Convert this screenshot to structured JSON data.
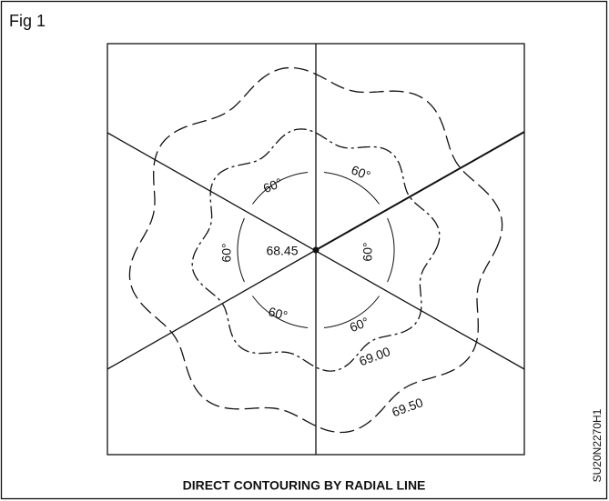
{
  "figure_label": "Fig 1",
  "center_label": "68.45",
  "angle_labels": [
    "60°",
    "60°",
    "60°",
    "60°",
    "60°",
    "60°"
  ],
  "contour_labels": [
    "69.00",
    "69.50"
  ],
  "caption": "DIRECT CONTOURING BY RADIAL LINE",
  "code": "SU20N2270H1"
}
